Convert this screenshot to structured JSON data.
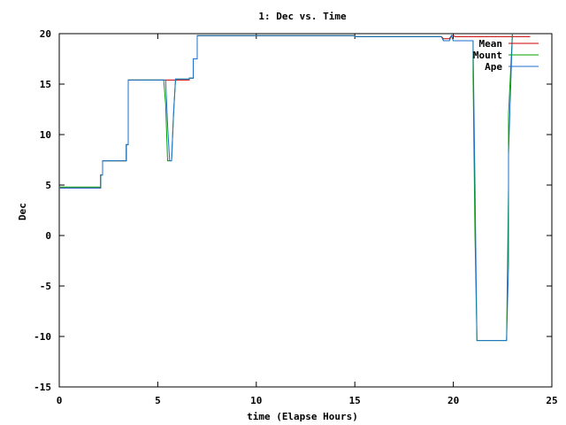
{
  "chart_data": {
    "type": "line",
    "title": "1: Dec vs. Time",
    "xlabel": "time (Elapse Hours)",
    "ylabel": "Dec",
    "xlim": [
      0,
      25
    ],
    "ylim": [
      -15,
      20
    ],
    "x_ticks": [
      0,
      5,
      10,
      15,
      20,
      25
    ],
    "y_ticks": [
      -15,
      -10,
      -5,
      0,
      5,
      10,
      15,
      20
    ],
    "grid": false,
    "legend_position": "top-right",
    "series": [
      {
        "name": "Mean",
        "color": "#cc0000",
        "x": [
          0,
          2.1,
          2.1,
          2.2,
          2.2,
          3.4,
          3.4,
          3.5,
          3.5,
          5.4,
          5.4,
          5.9,
          5.9,
          6.6,
          6.6,
          6.8,
          6.8,
          7.0,
          7.0,
          15.0,
          15.0,
          19.4,
          19.5,
          19.8,
          19.9,
          20.0,
          20.1,
          23.9
        ],
        "y": [
          4.7,
          4.7,
          6.0,
          6.0,
          7.4,
          7.4,
          9.0,
          9.0,
          15.4,
          15.4,
          15.4,
          15.4,
          15.4,
          15.4,
          15.6,
          15.6,
          17.5,
          17.5,
          19.8,
          19.8,
          19.7,
          19.7,
          19.5,
          19.5,
          19.8,
          19.8,
          19.7,
          19.7
        ]
      },
      {
        "name": "Mount",
        "color": "#00a000",
        "x": [
          0,
          2.1,
          2.1,
          2.2,
          2.2,
          3.4,
          3.4,
          3.5,
          3.5,
          5.3,
          5.4,
          5.5,
          5.6,
          5.7,
          5.8,
          5.9,
          5.9,
          6.6,
          6.6,
          6.8,
          6.8,
          7.0,
          7.0,
          15.0,
          15.0,
          19.4,
          19.5,
          19.8,
          19.9,
          20.0,
          20.1,
          21.0,
          21.0,
          21.1,
          21.2,
          21.2,
          22.6,
          22.7,
          22.8,
          22.8,
          23.0
        ],
        "y": [
          4.8,
          4.8,
          6.0,
          6.0,
          7.4,
          7.4,
          9.0,
          9.0,
          15.4,
          15.4,
          13.0,
          7.4,
          7.4,
          7.4,
          12.0,
          15.5,
          15.5,
          15.5,
          15.6,
          15.6,
          17.5,
          17.5,
          19.8,
          19.8,
          19.7,
          19.7,
          19.3,
          19.3,
          19.8,
          19.3,
          19.3,
          19.3,
          16.0,
          0,
          -10.4,
          -10.4,
          -10.4,
          -10.4,
          5.0,
          12.0,
          20.0
        ]
      },
      {
        "name": "Ape",
        "color": "#1e6fd1",
        "x": [
          0,
          2.1,
          2.1,
          2.2,
          2.2,
          3.4,
          3.4,
          3.5,
          3.5,
          5.4,
          5.5,
          5.6,
          5.7,
          5.8,
          5.9,
          5.9,
          6.6,
          6.6,
          6.8,
          6.8,
          7.0,
          7.0,
          15.0,
          15.0,
          19.4,
          19.5,
          19.8,
          19.9,
          20.0,
          20.1,
          21.0,
          21.1,
          21.2,
          22.6,
          22.7,
          22.8,
          22.8,
          23.0
        ],
        "y": [
          4.7,
          4.7,
          6.0,
          6.0,
          7.4,
          7.4,
          9.0,
          9.0,
          15.4,
          15.4,
          11.0,
          7.4,
          7.4,
          12.0,
          15.5,
          15.5,
          15.5,
          15.6,
          15.6,
          17.5,
          17.5,
          19.8,
          19.8,
          19.7,
          19.7,
          19.3,
          19.3,
          19.8,
          19.3,
          19.3,
          19.3,
          5.0,
          -10.4,
          -10.4,
          -10.4,
          -3.0,
          8.0,
          20.0
        ]
      }
    ]
  }
}
